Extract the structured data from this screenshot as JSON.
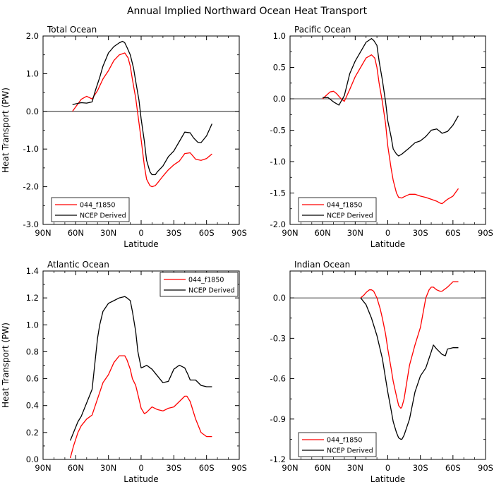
{
  "figure": {
    "title": "Annual Implied Northward Ocean Heat Transport"
  },
  "colors": {
    "model": "#ff0000",
    "observed": "#000000",
    "axis": "#000000",
    "zero_line": "#000000"
  },
  "chart_data": [
    {
      "type": "line",
      "title": "Total Ocean",
      "xlabel": "Latitude",
      "ylabel": "Heat Transport (PW)",
      "xlim": [
        90,
        -90
      ],
      "ylim": [
        -3,
        2
      ],
      "xticks": [
        90,
        60,
        30,
        0,
        -30,
        -60,
        -90
      ],
      "xtick_labels": [
        "90N",
        "60N",
        "30N",
        "0",
        "30S",
        "60S",
        "90S"
      ],
      "yticks": [
        -3,
        -2,
        -1,
        0,
        1,
        2
      ],
      "ytick_labels": [
        "-3.0",
        "-2.0",
        "-1.0",
        "0.0",
        "1.0",
        "2.0"
      ],
      "zero_line": true,
      "legend_position": "bottom-left",
      "series": [
        {
          "name": "044_f1850",
          "color": "#ff0000",
          "x": [
            63,
            60,
            55,
            50,
            45,
            40,
            35,
            30,
            25,
            20,
            15,
            12,
            10,
            8,
            5,
            2,
            0,
            -3,
            -5,
            -8,
            -10,
            -13,
            -15,
            -20,
            -25,
            -30,
            -35,
            -40,
            -45,
            -50,
            -55,
            -60,
            -65
          ],
          "y": [
            0.0,
            0.12,
            0.32,
            0.4,
            0.33,
            0.55,
            0.86,
            1.08,
            1.35,
            1.5,
            1.55,
            1.42,
            1.2,
            0.85,
            0.35,
            -0.3,
            -0.75,
            -1.45,
            -1.8,
            -1.97,
            -2.0,
            -1.97,
            -1.9,
            -1.72,
            -1.55,
            -1.42,
            -1.32,
            -1.12,
            -1.1,
            -1.27,
            -1.3,
            -1.25,
            -1.13
          ]
        },
        {
          "name": "NCEP Derived",
          "color": "#000000",
          "x": [
            63,
            60,
            55,
            50,
            45,
            42,
            38,
            35,
            30,
            25,
            20,
            17,
            15,
            13,
            10,
            7,
            5,
            2,
            0,
            -3,
            -5,
            -8,
            -10,
            -13,
            -15,
            -20,
            -25,
            -30,
            -35,
            -40,
            -45,
            -48,
            -52,
            -55,
            -60,
            -65
          ],
          "y": [
            0.18,
            0.2,
            0.23,
            0.22,
            0.25,
            0.55,
            0.9,
            1.2,
            1.55,
            1.72,
            1.82,
            1.86,
            1.82,
            1.7,
            1.5,
            1.15,
            0.8,
            0.3,
            -0.2,
            -0.8,
            -1.3,
            -1.6,
            -1.68,
            -1.68,
            -1.6,
            -1.45,
            -1.2,
            -1.05,
            -0.8,
            -0.55,
            -0.57,
            -0.7,
            -0.82,
            -0.83,
            -0.65,
            -0.33
          ]
        }
      ]
    },
    {
      "type": "line",
      "title": "Pacific Ocean",
      "xlabel": "Latitude",
      "ylabel": "",
      "xlim": [
        90,
        -90
      ],
      "ylim": [
        -2,
        1
      ],
      "xticks": [
        90,
        60,
        30,
        0,
        -30,
        -60,
        -90
      ],
      "xtick_labels": [
        "90N",
        "60N",
        "30N",
        "0",
        "30S",
        "60S",
        "90S"
      ],
      "yticks": [
        -2,
        -1.5,
        -1,
        -0.5,
        0,
        0.5,
        1
      ],
      "ytick_labels": [
        "-2.0",
        "-1.5",
        "-1.0",
        "-0.5",
        "0.0",
        "0.5",
        "1.0"
      ],
      "zero_line": true,
      "legend_position": "bottom-left",
      "series": [
        {
          "name": "044_f1850",
          "color": "#ff0000",
          "x": [
            60,
            57,
            53,
            50,
            47,
            43,
            40,
            35,
            30,
            25,
            20,
            15,
            12,
            10,
            8,
            5,
            2,
            0,
            -3,
            -5,
            -8,
            -10,
            -13,
            -15,
            -20,
            -25,
            -30,
            -35,
            -40,
            -45,
            -48,
            -50,
            -55,
            -60,
            -65
          ],
          "y": [
            0.0,
            0.05,
            0.11,
            0.12,
            0.08,
            0.0,
            -0.04,
            0.15,
            0.35,
            0.5,
            0.65,
            0.7,
            0.65,
            0.5,
            0.25,
            -0.05,
            -0.4,
            -0.75,
            -1.1,
            -1.3,
            -1.5,
            -1.57,
            -1.58,
            -1.56,
            -1.52,
            -1.52,
            -1.55,
            -1.57,
            -1.6,
            -1.63,
            -1.66,
            -1.67,
            -1.6,
            -1.55,
            -1.43
          ]
        },
        {
          "name": "NCEP Derived",
          "color": "#000000",
          "x": [
            60,
            55,
            50,
            45,
            40,
            35,
            30,
            25,
            20,
            15,
            13,
            10,
            8,
            5,
            2,
            0,
            -3,
            -5,
            -8,
            -10,
            -13,
            -15,
            -20,
            -25,
            -30,
            -35,
            -40,
            -45,
            -48,
            -50,
            -55,
            -60,
            -65
          ],
          "y": [
            0.02,
            0.02,
            -0.05,
            -0.1,
            0.05,
            0.4,
            0.6,
            0.75,
            0.9,
            0.96,
            0.93,
            0.85,
            0.6,
            0.3,
            -0.05,
            -0.35,
            -0.6,
            -0.8,
            -0.88,
            -0.91,
            -0.88,
            -0.85,
            -0.78,
            -0.7,
            -0.67,
            -0.6,
            -0.5,
            -0.48,
            -0.52,
            -0.55,
            -0.52,
            -0.42,
            -0.27
          ]
        }
      ]
    },
    {
      "type": "line",
      "title": "Atlantic Ocean",
      "xlabel": "Latitude",
      "ylabel": "Heat Transport (PW)",
      "xlim": [
        90,
        -90
      ],
      "ylim": [
        0,
        1.4
      ],
      "xticks": [
        90,
        60,
        30,
        0,
        -30,
        -60,
        -90
      ],
      "xtick_labels": [
        "90N",
        "60N",
        "30N",
        "0",
        "30S",
        "60S",
        "90S"
      ],
      "yticks": [
        0,
        0.2,
        0.4,
        0.6,
        0.8,
        1.0,
        1.2,
        1.4
      ],
      "ytick_labels": [
        "0.0",
        "0.2",
        "0.4",
        "0.6",
        "0.8",
        "1.0",
        "1.2",
        "1.4"
      ],
      "zero_line": false,
      "legend_position": "top-right",
      "series": [
        {
          "name": "044_f1850",
          "color": "#ff0000",
          "x": [
            65,
            62,
            58,
            55,
            50,
            45,
            40,
            35,
            30,
            25,
            20,
            15,
            13,
            10,
            8,
            5,
            2,
            0,
            -3,
            -5,
            -10,
            -15,
            -20,
            -25,
            -30,
            -35,
            -40,
            -42,
            -45,
            -50,
            -55,
            -60,
            -65
          ],
          "y": [
            0.01,
            0.1,
            0.2,
            0.25,
            0.3,
            0.33,
            0.45,
            0.57,
            0.63,
            0.72,
            0.77,
            0.77,
            0.74,
            0.67,
            0.6,
            0.55,
            0.45,
            0.38,
            0.34,
            0.35,
            0.39,
            0.37,
            0.36,
            0.38,
            0.39,
            0.43,
            0.47,
            0.47,
            0.43,
            0.3,
            0.2,
            0.17,
            0.17
          ]
        },
        {
          "name": "NCEP Derived",
          "color": "#000000",
          "x": [
            65,
            62,
            58,
            55,
            50,
            45,
            40,
            38,
            35,
            30,
            25,
            20,
            15,
            13,
            10,
            8,
            5,
            3,
            0,
            -3,
            -5,
            -10,
            -15,
            -20,
            -25,
            -30,
            -35,
            -40,
            -43,
            -45,
            -50,
            -55,
            -60,
            -63,
            -65
          ],
          "y": [
            0.14,
            0.2,
            0.28,
            0.32,
            0.42,
            0.52,
            0.9,
            1.0,
            1.1,
            1.16,
            1.18,
            1.2,
            1.21,
            1.2,
            1.18,
            1.1,
            0.95,
            0.8,
            0.68,
            0.69,
            0.7,
            0.67,
            0.62,
            0.57,
            0.58,
            0.67,
            0.7,
            0.68,
            0.63,
            0.59,
            0.59,
            0.55,
            0.54,
            0.54,
            0.54
          ]
        }
      ]
    },
    {
      "type": "line",
      "title": "Indian Ocean",
      "xlabel": "Latitude",
      "ylabel": "",
      "xlim": [
        90,
        -90
      ],
      "ylim": [
        -1.2,
        0.2
      ],
      "xticks": [
        90,
        60,
        30,
        0,
        -30,
        -60,
        -90
      ],
      "xtick_labels": [
        "90N",
        "60N",
        "30N",
        "0",
        "30S",
        "60S",
        "90S"
      ],
      "yticks": [
        -1.2,
        -0.9,
        -0.6,
        -0.3,
        0
      ],
      "ytick_labels": [
        "-1.2",
        "-0.9",
        "-0.6",
        "-0.3",
        "0.0"
      ],
      "zero_line": true,
      "legend_position": "bottom-left",
      "series": [
        {
          "name": "044_f1850",
          "color": "#ff0000",
          "x": [
            25,
            22,
            20,
            17,
            15,
            13,
            10,
            7,
            5,
            2,
            0,
            -3,
            -5,
            -8,
            -10,
            -12,
            -13,
            -15,
            -18,
            -20,
            -25,
            -30,
            -35,
            -38,
            -40,
            -42,
            -45,
            -48,
            -50,
            -55,
            -60,
            -65
          ],
          "y": [
            0.0,
            0.02,
            0.04,
            0.06,
            0.06,
            0.05,
            0.0,
            -0.08,
            -0.15,
            -0.27,
            -0.38,
            -0.52,
            -0.62,
            -0.73,
            -0.8,
            -0.82,
            -0.81,
            -0.75,
            -0.6,
            -0.5,
            -0.35,
            -0.22,
            0.0,
            0.06,
            0.08,
            0.08,
            0.06,
            0.05,
            0.05,
            0.08,
            0.12,
            0.12
          ]
        },
        {
          "name": "NCEP Derived",
          "color": "#000000",
          "x": [
            25,
            20,
            15,
            10,
            5,
            2,
            0,
            -3,
            -5,
            -8,
            -10,
            -12,
            -13,
            -15,
            -20,
            -25,
            -30,
            -35,
            -40,
            -42,
            -45,
            -50,
            -53,
            -55,
            -60,
            -65
          ],
          "y": [
            0.0,
            -0.05,
            -0.15,
            -0.28,
            -0.45,
            -0.6,
            -0.7,
            -0.83,
            -0.92,
            -1.0,
            -1.04,
            -1.05,
            -1.05,
            -1.02,
            -0.9,
            -0.7,
            -0.58,
            -0.52,
            -0.4,
            -0.35,
            -0.38,
            -0.42,
            -0.43,
            -0.38,
            -0.37,
            -0.37
          ]
        }
      ]
    }
  ]
}
